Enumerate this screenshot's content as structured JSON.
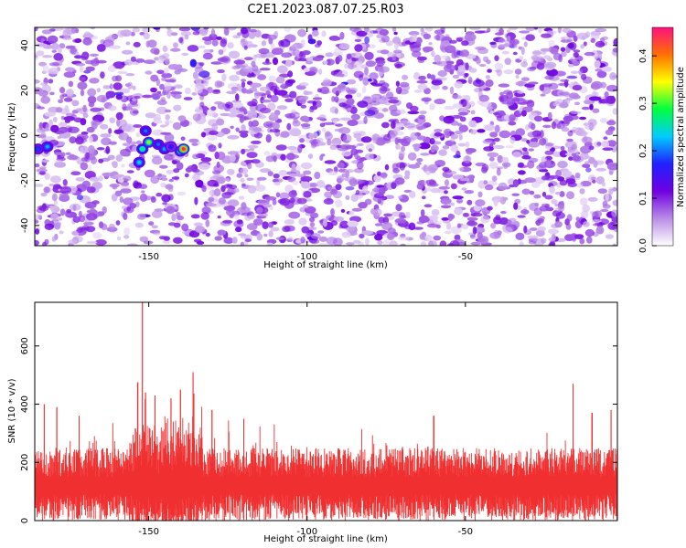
{
  "title": "C2E1.2023.087.07.25.R03",
  "chart_data": [
    {
      "type": "heatmap",
      "xlabel": "Height of straight line (km)",
      "ylabel": "Frequency (Hz)",
      "xlim": [
        -186,
        -2
      ],
      "ylim": [
        -49,
        48
      ],
      "xticks": [
        -150,
        -100,
        -50
      ],
      "xtick_labels": [
        "-150",
        "-100",
        "-50"
      ],
      "yticks": [
        -40,
        -20,
        0,
        20,
        40
      ],
      "ytick_labels": [
        "-40",
        "-20",
        "0",
        "20",
        "40"
      ],
      "colorbar": {
        "label": "Normalized spectral amplitude",
        "range": [
          0,
          0.46
        ],
        "ticks": [
          0.0,
          0.1,
          0.2,
          0.3,
          0.4
        ],
        "tick_labels": [
          "0.0",
          "0.1",
          "0.2",
          "0.3",
          "0.4"
        ],
        "colormap": [
          "#ffffff",
          "#b98ce6",
          "#7000e0",
          "#2020ff",
          "#00ccff",
          "#00ff40",
          "#ffff00",
          "#ff7000",
          "#ff1080"
        ]
      },
      "background_level": 0.06,
      "features": [
        {
          "x": -185,
          "y": -6,
          "amplitude": 0.18
        },
        {
          "x": -182,
          "y": -5,
          "amplitude": 0.22
        },
        {
          "x": -153,
          "y": -12,
          "amplitude": 0.24
        },
        {
          "x": -152,
          "y": -6,
          "amplitude": 0.28
        },
        {
          "x": -150,
          "y": -3,
          "amplitude": 0.32
        },
        {
          "x": -151,
          "y": 2,
          "amplitude": 0.2
        },
        {
          "x": -147,
          "y": -4,
          "amplitude": 0.2
        },
        {
          "x": -145,
          "y": -6,
          "amplitude": 0.22
        },
        {
          "x": -143,
          "y": -5,
          "amplitude": 0.16
        },
        {
          "x": -140,
          "y": -7,
          "amplitude": 0.3
        },
        {
          "x": -139,
          "y": -6,
          "amplitude": 0.45
        }
      ]
    },
    {
      "type": "line",
      "xlabel": "Height of straight line (km)",
      "ylabel": "SNR (10 * v/v)",
      "xlim": [
        -186,
        -2
      ],
      "ylim": [
        0,
        750
      ],
      "xticks": [
        -150,
        -100,
        -50
      ],
      "xtick_labels": [
        "-150",
        "-100",
        "-50"
      ],
      "yticks": [
        0,
        200,
        400,
        600
      ],
      "ytick_labels": [
        "0",
        "200",
        "400",
        "600"
      ],
      "color": "#f03030",
      "baseline_mean": 130,
      "peaks": [
        {
          "x": -152,
          "y": 750
        },
        {
          "x": -153.5,
          "y": 475
        },
        {
          "x": -151,
          "y": 440
        },
        {
          "x": -148,
          "y": 430
        },
        {
          "x": -143,
          "y": 420
        },
        {
          "x": -140,
          "y": 450
        },
        {
          "x": -136,
          "y": 510
        },
        {
          "x": -183,
          "y": 400
        },
        {
          "x": -179,
          "y": 390
        },
        {
          "x": -172,
          "y": 360
        },
        {
          "x": -130,
          "y": 380
        },
        {
          "x": -120,
          "y": 350
        },
        {
          "x": -60,
          "y": 360
        },
        {
          "x": -16,
          "y": 470
        },
        {
          "x": -10,
          "y": 370
        },
        {
          "x": -4,
          "y": 380
        }
      ]
    }
  ]
}
